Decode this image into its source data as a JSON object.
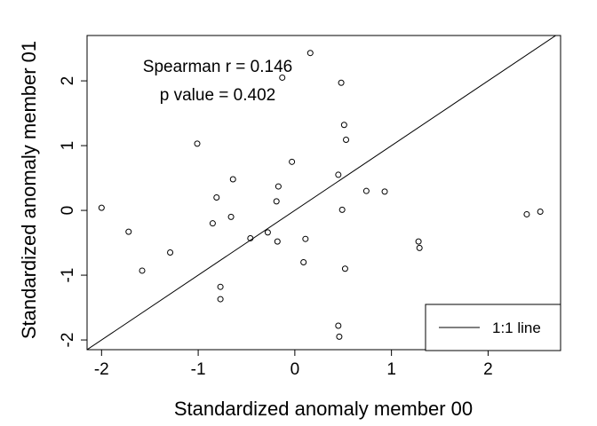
{
  "chart_data": {
    "type": "scatter",
    "xlabel": "Standardized anomaly member 00",
    "ylabel": "Standardized anomaly member 01",
    "xlim": [
      -2.15,
      2.75
    ],
    "ylim": [
      -2.15,
      2.7
    ],
    "xticks": [
      -2,
      -1,
      0,
      1,
      2
    ],
    "yticks": [
      -2,
      -1,
      0,
      1,
      2
    ],
    "grid": false,
    "legend": {
      "position": "bottom-right",
      "label": "1:1 line"
    },
    "reference_line": {
      "label": "1:1 line",
      "slope": 1,
      "intercept": 0
    },
    "annotations": [
      "Spearman r = 0.146",
      "p value = 0.402"
    ],
    "points": [
      {
        "x": -2.0,
        "y": 0.04
      },
      {
        "x": -1.72,
        "y": -0.33
      },
      {
        "x": -1.58,
        "y": -0.93
      },
      {
        "x": -1.29,
        "y": -0.65
      },
      {
        "x": -1.01,
        "y": 1.03
      },
      {
        "x": -0.85,
        "y": -0.2
      },
      {
        "x": -0.81,
        "y": 0.2
      },
      {
        "x": -0.77,
        "y": -1.18
      },
      {
        "x": -0.77,
        "y": -1.37
      },
      {
        "x": -0.66,
        "y": -0.1
      },
      {
        "x": -0.64,
        "y": 0.48
      },
      {
        "x": -0.46,
        "y": -0.43
      },
      {
        "x": -0.28,
        "y": -0.34
      },
      {
        "x": -0.19,
        "y": 0.14
      },
      {
        "x": -0.18,
        "y": -0.48
      },
      {
        "x": -0.17,
        "y": 0.37
      },
      {
        "x": -0.13,
        "y": 2.05
      },
      {
        "x": -0.03,
        "y": 0.75
      },
      {
        "x": 0.09,
        "y": -0.8
      },
      {
        "x": 0.11,
        "y": -0.44
      },
      {
        "x": 0.16,
        "y": 2.43
      },
      {
        "x": 0.45,
        "y": 0.55
      },
      {
        "x": 0.45,
        "y": -1.78
      },
      {
        "x": 0.46,
        "y": -1.95
      },
      {
        "x": 0.48,
        "y": 1.97
      },
      {
        "x": 0.49,
        "y": 0.01
      },
      {
        "x": 0.51,
        "y": 1.32
      },
      {
        "x": 0.53,
        "y": 1.09
      },
      {
        "x": 0.52,
        "y": -0.9
      },
      {
        "x": 0.74,
        "y": 0.3
      },
      {
        "x": 0.93,
        "y": 0.29
      },
      {
        "x": 1.28,
        "y": -0.48
      },
      {
        "x": 1.29,
        "y": -0.58
      },
      {
        "x": 2.4,
        "y": -0.06
      },
      {
        "x": 2.54,
        "y": -0.02
      }
    ]
  }
}
